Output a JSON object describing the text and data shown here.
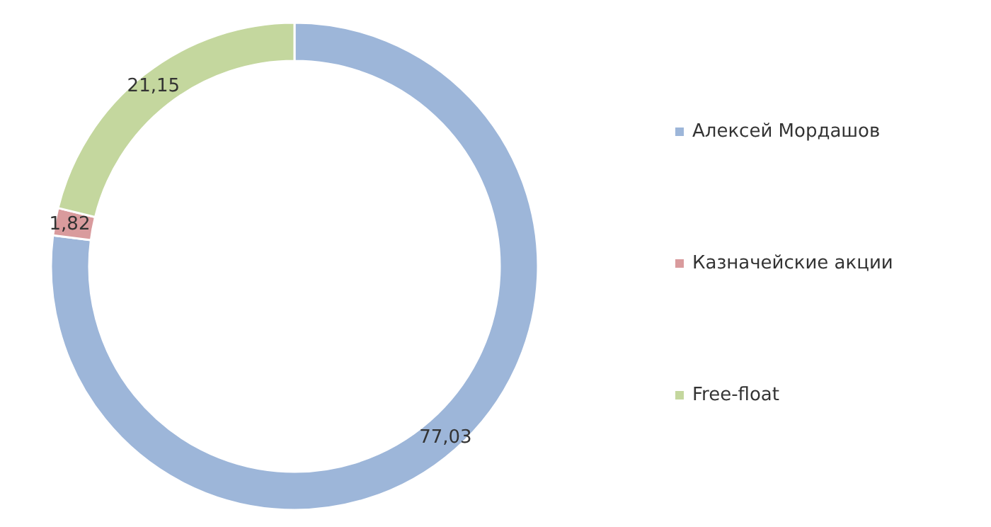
{
  "chart_data": {
    "type": "donut",
    "categories": [
      "Алексей Мордашов",
      "Казначейские акции",
      "Free-float"
    ],
    "values": [
      77.03,
      1.82,
      21.15
    ],
    "colors": [
      "#9db6d9",
      "#d99b9d",
      "#c4d79e"
    ],
    "value_labels": [
      "77,03",
      "1,82",
      "21,15"
    ],
    "legend": "right"
  }
}
